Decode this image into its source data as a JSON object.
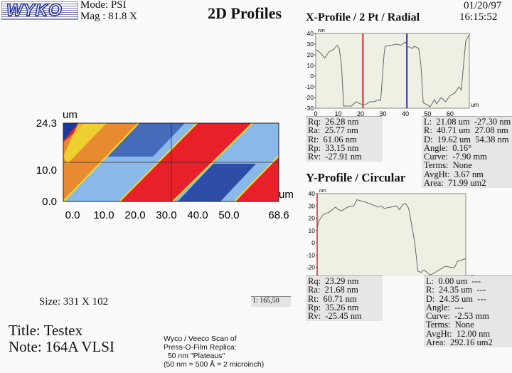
{
  "header": {
    "logo": "WYKO",
    "mode": "Mode: PSI",
    "mag": "Mag : 81.8 X",
    "title": "2D Profiles",
    "date": "01/20/97",
    "time": "16:15:52"
  },
  "colors": {
    "red": "#e8202a",
    "dark_blue": "#1d3a9a",
    "light_blue": "#8ab8e8",
    "yellow": "#f0e020",
    "orange": "#e86a20",
    "cursor_left": "#e02030",
    "cursor_right": "#3030a0",
    "plot_bg": "#f0efe4"
  },
  "map": {
    "unit_y": "um",
    "unit_x": "um",
    "y_ticks": [
      "24.3",
      "10.0",
      "0.0"
    ],
    "x_ticks": [
      "0.0",
      "10.0",
      "20.0",
      "30.0",
      "40.0",
      "50.0",
      "68.6"
    ]
  },
  "x_profile": {
    "title": "X-Profile / 2 Pt / Radial",
    "stats_left": [
      "Rq:  26.28 nm",
      "Ra:  25.77 nm",
      "Rt:  61.06 nm",
      "Rp:  33.15 nm",
      "Rv:  -27.91 nm"
    ],
    "stats_right": [
      "L:  21.08 um  -27.30 nm",
      "R:  40.71 um  27.08 nm",
      "D:  19.62 um  54.38 nm",
      "Angle:  0.16°",
      "Curve:  -7.90 mm",
      "Terms:  None",
      "AvgHt:  3.67 nm",
      "Area:  71.99 um2"
    ]
  },
  "y_profile": {
    "title": "Y-Profile / Circular",
    "stats_left": [
      "Rq:  23.29 nm",
      "Ra:  21.68 nm",
      "Rt:  60.71 nm",
      "Rp:  35.26 nm",
      "Rv:  -25.45 nm"
    ],
    "stats_right": [
      "L:  0.00 um  ---",
      "R:  24.35 um  ---",
      "D:  24.35 um  ---",
      "Angle:  ---",
      "Curve:  -2.53 mm",
      "Terms:  None",
      "AvgHt:  12.00 nm",
      "Area:  292.16 um2"
    ]
  },
  "footer": {
    "size": "Size: 331 X 102",
    "cursor_readout": "1: 165,50",
    "title": "Title: Testex",
    "note": "Note: 164A VLSI",
    "caption": [
      "Wyco / Veeco Scan of",
      "Press-O-Film Replica:",
      "  50 nm \"Plateaus\"",
      "(50 nm = 500 Å = 2 microinch)"
    ]
  },
  "chart_data": [
    {
      "type": "line",
      "title": "X-Profile / 2 Pt / Radial",
      "xlabel": "um",
      "ylabel": "nm",
      "xlim": [
        0,
        68.6
      ],
      "ylim": [
        -30,
        40
      ],
      "x_ticks": [
        0,
        10,
        20,
        30,
        40,
        50,
        60
      ],
      "y_ticks": [
        40,
        30,
        20,
        10,
        0,
        -10,
        -20,
        -30
      ],
      "cursors": [
        21.08,
        40.71
      ],
      "x": [
        0,
        2,
        4,
        6,
        8,
        9.5,
        10.5,
        11.5,
        12.5,
        14,
        16,
        18,
        20,
        22,
        24,
        26,
        28,
        29,
        30.5,
        31,
        34,
        36,
        38,
        40,
        41,
        43,
        44,
        46,
        47,
        48,
        50,
        51,
        53,
        54,
        56,
        58,
        60,
        62,
        64,
        65,
        66,
        67,
        68.6
      ],
      "y": [
        25,
        22,
        17,
        23,
        25,
        29,
        26,
        10,
        -28,
        -28,
        -28,
        -24,
        -26,
        -27,
        -24,
        -24,
        -22,
        -23,
        20,
        28,
        29,
        30,
        29,
        32,
        28,
        26,
        28,
        26,
        10,
        -25,
        -27,
        -29,
        -22,
        -26,
        -20,
        -24,
        -18,
        -16,
        -10,
        -13,
        10,
        33,
        39
      ]
    },
    {
      "type": "line",
      "title": "Y-Profile / Circular",
      "xlabel": "um",
      "ylabel": "nm",
      "xlim": [
        0,
        24.35
      ],
      "ylim": [
        -30,
        40
      ],
      "x_ticks": [
        0,
        5,
        10,
        15,
        20
      ],
      "y_ticks": [
        40,
        30,
        20,
        10,
        0,
        -10,
        -20,
        -30
      ],
      "x": [
        0,
        0.3,
        1,
        2,
        3,
        3.5,
        4,
        5,
        6,
        6.5,
        8,
        9,
        10,
        10.5,
        11,
        12,
        13,
        13.5,
        14,
        14.5,
        15,
        16,
        16.5,
        17,
        17.5,
        18.5,
        19,
        20,
        21,
        22,
        22.5,
        23,
        24.3
      ],
      "y": [
        12,
        18,
        23,
        25,
        29,
        27,
        26,
        29,
        30,
        35,
        33,
        31,
        29,
        30,
        28,
        29,
        30,
        27,
        31,
        32,
        28,
        0,
        -23,
        -24,
        -22,
        -26,
        -25,
        -22,
        -19,
        -20,
        -20,
        -15,
        -13
      ]
    }
  ]
}
